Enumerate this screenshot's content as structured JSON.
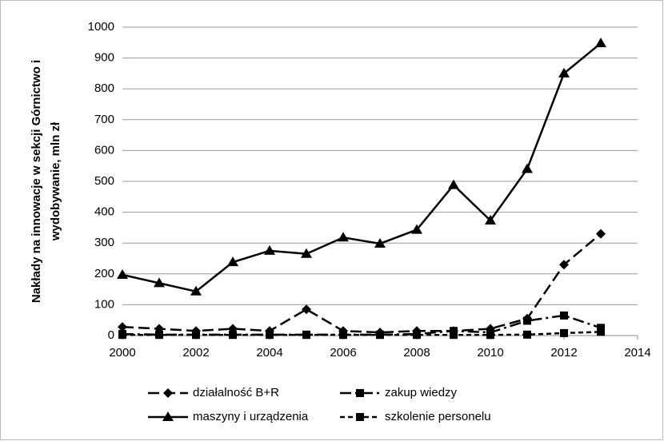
{
  "chart_data": {
    "type": "line",
    "y_label_lines": [
      "Nakłady na innowacje w sekcji Górnictwo i",
      "wydobywanie,  mln zł"
    ],
    "x": [
      2000,
      2001,
      2002,
      2003,
      2004,
      2005,
      2006,
      2007,
      2008,
      2009,
      2010,
      2011,
      2012,
      2013
    ],
    "series": [
      {
        "name": "działalność B+R",
        "color": "#000000",
        "marker": "diamond",
        "dash": "14,6",
        "values": [
          28,
          22,
          15,
          22,
          15,
          85,
          15,
          10,
          15,
          15,
          22,
          55,
          230,
          330
        ]
      },
      {
        "name": "zakup wiedzy",
        "color": "#000000",
        "marker": "square",
        "dash": "14,5,3,5",
        "values": [
          5,
          3,
          3,
          3,
          3,
          3,
          3,
          3,
          5,
          15,
          10,
          48,
          65,
          25
        ]
      },
      {
        "name": "maszyny i urządzenia",
        "color": "#000000",
        "marker": "triangle",
        "dash": "none",
        "values": [
          197,
          170,
          143,
          238,
          275,
          265,
          318,
          298,
          343,
          488,
          373,
          540,
          850,
          948
        ]
      },
      {
        "name": "szkolenie personelu",
        "color": "#000000",
        "marker": "square",
        "dash": "6,4",
        "values": [
          2,
          2,
          2,
          2,
          2,
          2,
          2,
          2,
          2,
          2,
          2,
          3,
          8,
          12
        ]
      }
    ],
    "xlim": [
      2000,
      2014
    ],
    "xticks": [
      2000,
      2002,
      2004,
      2006,
      2008,
      2010,
      2012,
      2014
    ],
    "ylim": [
      0,
      1000
    ],
    "yticks": [
      0,
      100,
      200,
      300,
      400,
      500,
      600,
      700,
      800,
      900,
      1000
    ],
    "grid": true
  }
}
